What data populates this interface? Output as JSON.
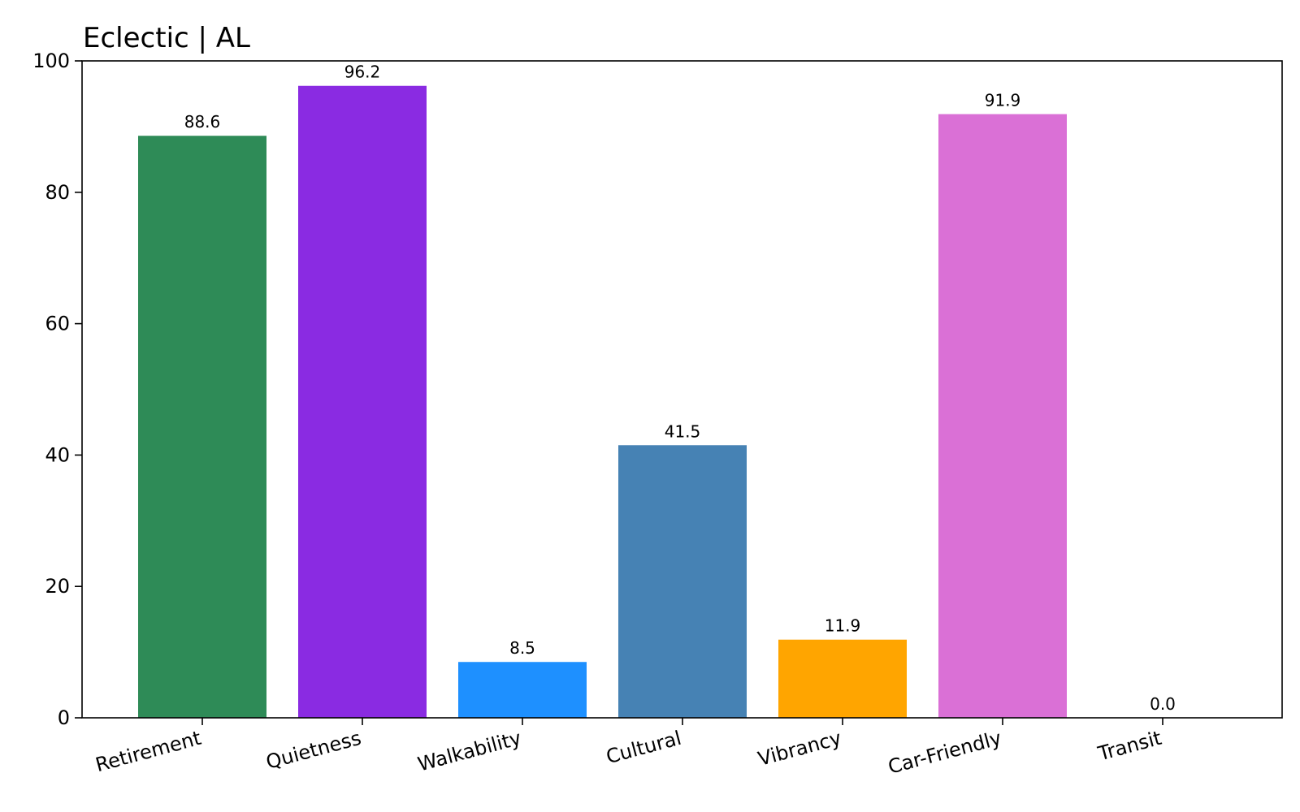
{
  "chart_data": {
    "type": "bar",
    "title": "Eclectic | AL",
    "xlabel": "",
    "ylabel": "",
    "categories": [
      "Retirement",
      "Quietness",
      "Walkability",
      "Cultural",
      "Vibrancy",
      "Car-Friendly",
      "Transit"
    ],
    "values": [
      88.6,
      96.2,
      8.5,
      41.5,
      11.9,
      91.9,
      0.0
    ],
    "value_labels": [
      "88.6",
      "96.2",
      "8.5",
      "41.5",
      "11.9",
      "91.9",
      "0.0"
    ],
    "colors": [
      "#2e8b57",
      "#8a2be2",
      "#1e90ff",
      "#4682b4",
      "#ffa500",
      "#da70d6",
      "#808080"
    ],
    "ylim": [
      0,
      100
    ],
    "yticks": [
      0,
      20,
      40,
      60,
      80,
      100
    ],
    "ytick_labels": [
      "0",
      "20",
      "40",
      "60",
      "80",
      "100"
    ],
    "grid": false,
    "legend": "none"
  }
}
